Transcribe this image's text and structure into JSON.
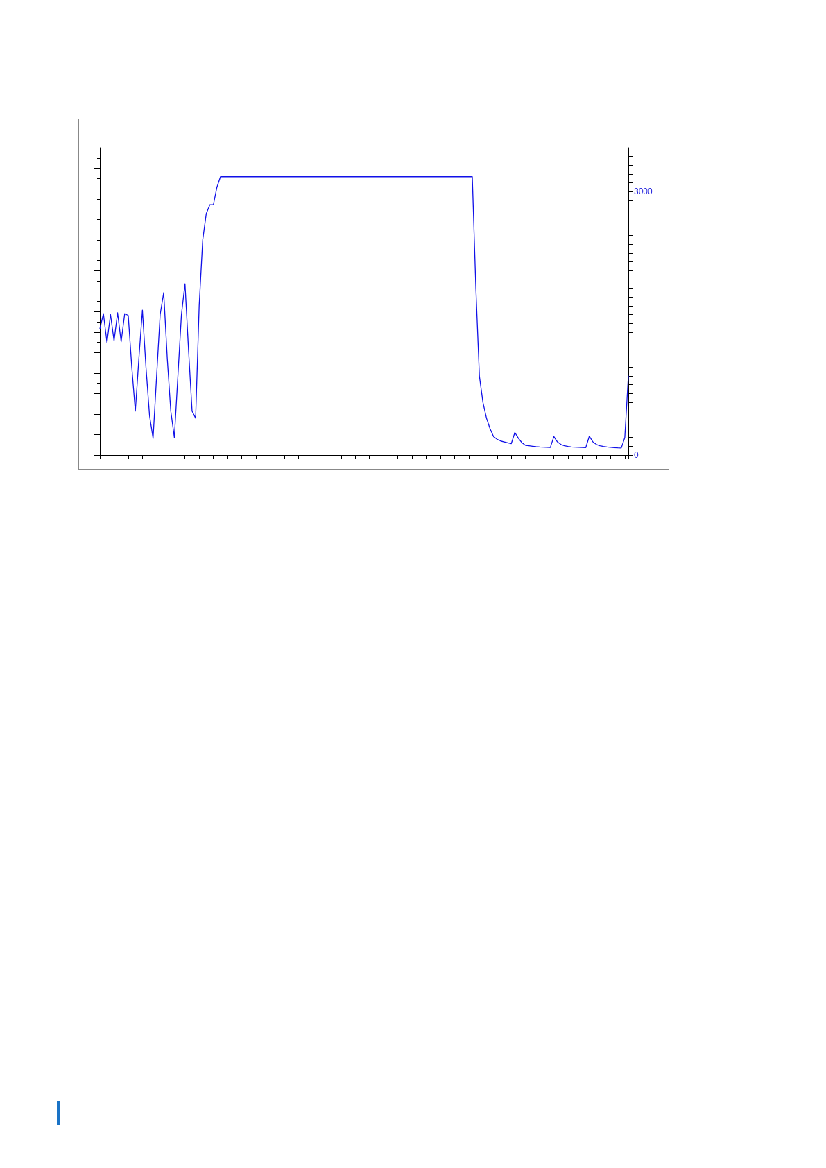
{
  "chart_data": {
    "type": "line",
    "categories": [
      null,
      null,
      null,
      null,
      null,
      null,
      null,
      null,
      null,
      null,
      null,
      null,
      null,
      null,
      null,
      null,
      null,
      null,
      null,
      null,
      null,
      null,
      null,
      null,
      null,
      null,
      null,
      null,
      null,
      null,
      null,
      null,
      null,
      null,
      null,
      null,
      null,
      null,
      null,
      null,
      null,
      null,
      null,
      null,
      null,
      null,
      null,
      null,
      null,
      null,
      null,
      null,
      null,
      null,
      null,
      null,
      null,
      null,
      null,
      null,
      null,
      null,
      null,
      null,
      null,
      null,
      null,
      null,
      null,
      null,
      null,
      null,
      null,
      null,
      null,
      null,
      null,
      null,
      null,
      null,
      null,
      null,
      null,
      null,
      null,
      null,
      null,
      null,
      null,
      null,
      null,
      null,
      null,
      null,
      null,
      null,
      null,
      null,
      null,
      null,
      null,
      null,
      null,
      null,
      null,
      null,
      null,
      null,
      null,
      null,
      null,
      null,
      null,
      null,
      null,
      null,
      null,
      null,
      null,
      null,
      null,
      null,
      null,
      null,
      null,
      null,
      null,
      null,
      null,
      null,
      null,
      null,
      null,
      null,
      null,
      null,
      null,
      null,
      null,
      null,
      null,
      null,
      null,
      null,
      null,
      null,
      null,
      null,
      null,
      null
    ],
    "series": [
      {
        "color": "#1010e8",
        "values": [
          1436,
          1610,
          1280,
          1600,
          1300,
          1620,
          1290,
          1610,
          1590,
          1000,
          500,
          1100,
          1650,
          1000,
          450,
          190,
          900,
          1600,
          1850,
          1100,
          500,
          200,
          900,
          1600,
          1950,
          1200,
          500,
          420,
          1700,
          2450,
          2750,
          2850,
          2850,
          3050,
          3170,
          3170,
          3170,
          3170,
          3170,
          3170,
          3170,
          3170,
          3170,
          3170,
          3170,
          3170,
          3170,
          3170,
          3170,
          3170,
          3170,
          3170,
          3170,
          3170,
          3170,
          3170,
          3170,
          3170,
          3170,
          3170,
          3170,
          3170,
          3170,
          3170,
          3170,
          3170,
          3170,
          3170,
          3170,
          3170,
          3170,
          3170,
          3170,
          3170,
          3170,
          3170,
          3170,
          3170,
          3170,
          3170,
          3170,
          3170,
          3170,
          3170,
          3170,
          3170,
          3170,
          3170,
          3170,
          3170,
          3170,
          3170,
          3170,
          3170,
          3170,
          3170,
          3170,
          3170,
          3170,
          3170,
          3170,
          3170,
          3170,
          3170,
          3170,
          3170,
          1900,
          900,
          600,
          420,
          300,
          210,
          180,
          160,
          150,
          140,
          130,
          257,
          190,
          140,
          110,
          105,
          100,
          95,
          92,
          90,
          88,
          86,
          210,
          150,
          120,
          105,
          98,
          92,
          90,
          88,
          86,
          85,
          215,
          150,
          120,
          105,
          98,
          92,
          88,
          85,
          82,
          80,
          200,
          900
        ]
      }
    ],
    "ylim": [
      0,
      3500
    ],
    "yticks": [
      0,
      {
        "value": 100,
        "label": null
      },
      {
        "value": 200,
        "label": null
      },
      {
        "value": 300,
        "label": null
      },
      {
        "value": 400,
        "label": null
      },
      {
        "value": 500,
        "label": null
      },
      {
        "value": 600,
        "label": null
      },
      {
        "value": 700,
        "label": null
      },
      {
        "value": 800,
        "label": null
      },
      {
        "value": 900,
        "label": null
      },
      {
        "value": 1000,
        "label": null
      },
      {
        "value": 1100,
        "label": null
      },
      {
        "value": 1200,
        "label": null
      },
      {
        "value": 1300,
        "label": null
      },
      {
        "value": 1400,
        "label": null
      },
      {
        "value": 1500,
        "label": null
      },
      {
        "value": 1600,
        "label": null
      },
      {
        "value": 1700,
        "label": null
      },
      {
        "value": 1800,
        "label": null
      },
      {
        "value": 1900,
        "label": null
      },
      {
        "value": 2000,
        "label": null
      },
      {
        "value": 2100,
        "label": null
      },
      {
        "value": 2200,
        "label": null
      },
      {
        "value": 2300,
        "label": null
      },
      {
        "value": 2400,
        "label": null
      },
      {
        "value": 2500,
        "label": null
      },
      {
        "value": 2600,
        "label": null
      },
      {
        "value": 2700,
        "label": null
      },
      {
        "value": 2800,
        "label": null
      },
      {
        "value": 2900,
        "label": null
      },
      3000,
      {
        "value": 3100,
        "label": null
      },
      {
        "value": 3200,
        "label": null
      },
      {
        "value": 3300,
        "label": null
      },
      {
        "value": 3400,
        "label": null
      },
      {
        "value": 3500,
        "label": null
      }
    ],
    "tick_labels": "y",
    "marker": "none",
    "line_style": "solid"
  }
}
